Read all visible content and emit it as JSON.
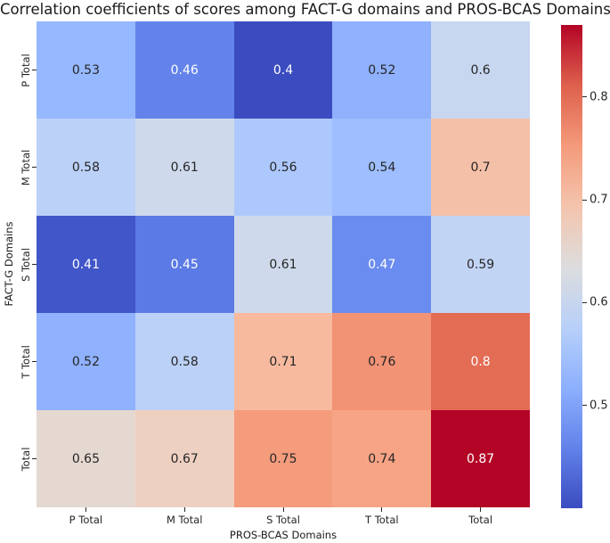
{
  "chart_data": {
    "type": "heatmap",
    "title": "Correlation coefficients of scores among FACT-G domains and PROS-BCAS Domains",
    "xlabel": "PROS-BCAS Domains",
    "ylabel": "FACT-G Domains",
    "x_categories": [
      "P Total",
      "M Total",
      "S Total",
      "T Total",
      "Total"
    ],
    "y_categories": [
      "P Total",
      "M Total",
      "S Total",
      "T Total",
      "Total"
    ],
    "vmin": 0.4,
    "vmax": 0.87,
    "colormap": "coolwarm",
    "values": [
      [
        0.53,
        0.46,
        0.4,
        0.52,
        0.6
      ],
      [
        0.58,
        0.61,
        0.56,
        0.54,
        0.7
      ],
      [
        0.41,
        0.45,
        0.61,
        0.47,
        0.59
      ],
      [
        0.52,
        0.58,
        0.71,
        0.76,
        0.8
      ],
      [
        0.65,
        0.67,
        0.75,
        0.74,
        0.87
      ]
    ],
    "value_labels": [
      [
        "0.53",
        "0.46",
        "0.4",
        "0.52",
        "0.6"
      ],
      [
        "0.58",
        "0.61",
        "0.56",
        "0.54",
        "0.7"
      ],
      [
        "0.41",
        "0.45",
        "0.61",
        "0.47",
        "0.59"
      ],
      [
        "0.52",
        "0.58",
        "0.71",
        "0.76",
        "0.8"
      ],
      [
        "0.65",
        "0.67",
        "0.75",
        "0.74",
        "0.87"
      ]
    ],
    "cell_colors": [
      [
        "#96b8ff",
        "#6383eb",
        "#3b4cc0",
        "#8fb1fe",
        "#c8d7f0"
      ],
      [
        "#bbd1f8",
        "#cedaeb",
        "#adc8fd",
        "#9ebeff",
        "#f5c0a8"
      ],
      [
        "#4156c8",
        "#5c7ae5",
        "#cedaeb",
        "#6a8bef",
        "#c2d4f4"
      ],
      [
        "#8fb1fe",
        "#bbd1f8",
        "#f7ba9f",
        "#f29375",
        "#e36c55"
      ],
      [
        "#e5d8d1",
        "#eed0c1",
        "#f59c7d",
        "#f6a485",
        "#b40426"
      ]
    ],
    "cell_text_colors": [
      [
        "#262626",
        "#ffffff",
        "#ffffff",
        "#262626",
        "#262626"
      ],
      [
        "#262626",
        "#262626",
        "#262626",
        "#262626",
        "#262626"
      ],
      [
        "#ffffff",
        "#ffffff",
        "#262626",
        "#ffffff",
        "#262626"
      ],
      [
        "#262626",
        "#262626",
        "#262626",
        "#262626",
        "#ffffff"
      ],
      [
        "#262626",
        "#262626",
        "#262626",
        "#262626",
        "#ffffff"
      ]
    ],
    "colorbar": {
      "tick_labels": [
        "0.8",
        "0.7",
        "0.6",
        "0.5"
      ],
      "tick_values": [
        0.8,
        0.7,
        0.6,
        0.5
      ],
      "gradient_top_to_bottom": [
        "#b40426",
        "#de604d",
        "#f49a7b",
        "#f4c4ad",
        "#dddddd",
        "#b8d0f9",
        "#8db0fe",
        "#6282ea",
        "#3b4cc0"
      ]
    },
    "legend": "none",
    "grid": "off"
  }
}
